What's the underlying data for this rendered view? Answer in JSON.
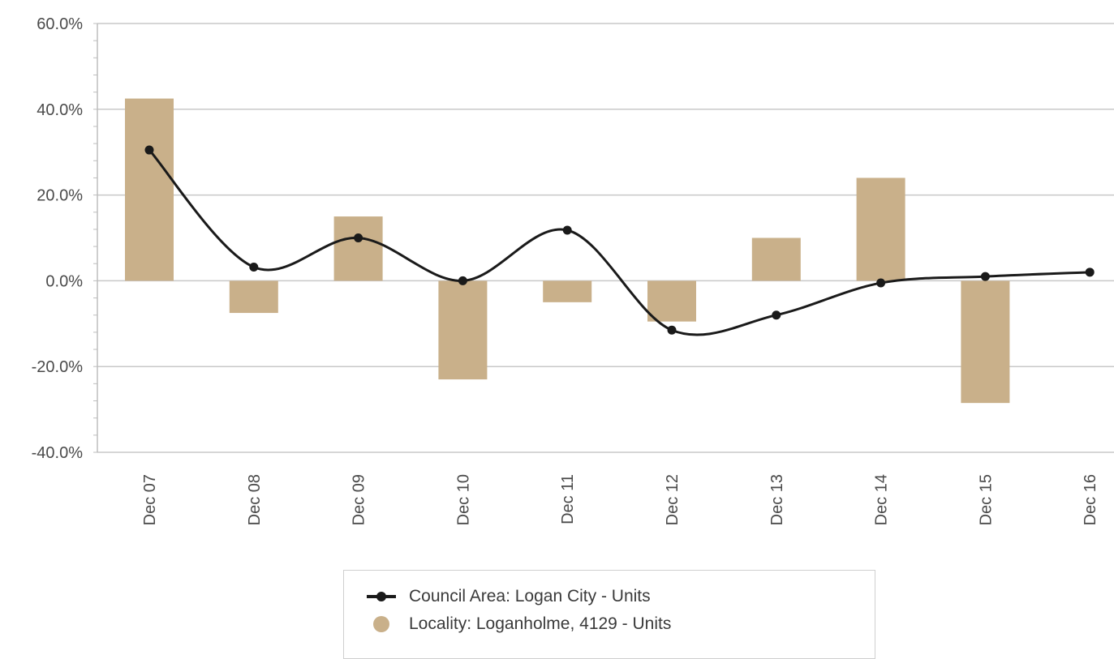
{
  "chart_data": {
    "type": "bar",
    "categories": [
      "Dec 07",
      "Dec 08",
      "Dec 09",
      "Dec 10",
      "Dec 11",
      "Dec 12",
      "Dec 13",
      "Dec 14",
      "Dec 15",
      "Dec 16"
    ],
    "series": [
      {
        "name": "Locality: Loganholme, 4129 - Units",
        "type": "bar",
        "color": "#c9b08a",
        "values": [
          42.5,
          -7.5,
          15.0,
          -23.0,
          -5.0,
          -9.5,
          10.0,
          24.0,
          -28.5,
          0.0
        ]
      },
      {
        "name": "Council Area: Logan City - Units",
        "type": "line",
        "color": "#1a1a1a",
        "values": [
          30.5,
          3.2,
          10.0,
          0.0,
          11.8,
          -11.5,
          -8.0,
          -0.5,
          1.0,
          2.0
        ]
      }
    ],
    "ylim": [
      -40,
      60
    ],
    "yticks": [
      "60.0%",
      "40.0%",
      "20.0%",
      "0.0%",
      "-20.0%",
      "-40.0%"
    ],
    "ytick_values": [
      60,
      40,
      20,
      0,
      -20,
      -40
    ],
    "grid": true,
    "legend_position": "bottom",
    "title": "",
    "xlabel": "",
    "ylabel": ""
  },
  "legend": {
    "items": [
      {
        "label": "Council Area: Logan City - Units",
        "icon": "line-marker-icon"
      },
      {
        "label": "Locality: Loganholme, 4129 - Units",
        "icon": "circle-icon",
        "color": "#c9b08a"
      }
    ]
  }
}
